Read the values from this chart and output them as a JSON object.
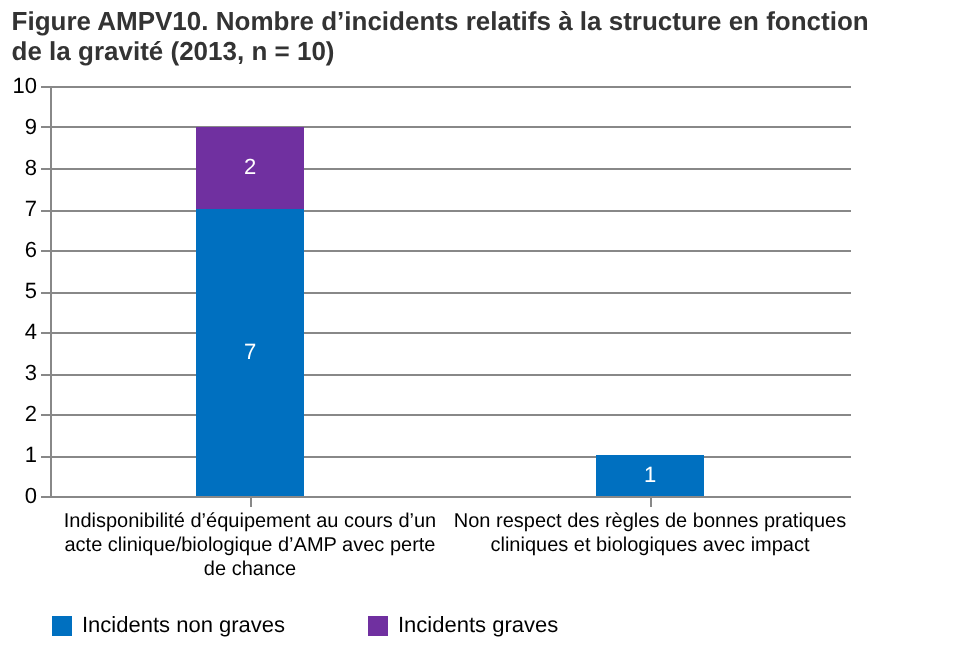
{
  "chart_data": {
    "type": "bar",
    "title": "Figure AMPV10. Nombre d’incidents relatifs à la structure en fonction de la gravité (2013, n = 10)",
    "categories": [
      "Indisponibilité d’équipement au cours d’un acte clinique/biologique d’AMP avec perte de chance",
      "Non respect des règles de bonnes pratiques cliniques et biologiques avec impact"
    ],
    "series": [
      {
        "name": "Incidents non graves",
        "color": "#0070c0",
        "values": [
          7,
          1
        ]
      },
      {
        "name": "Incidents graves",
        "color": "#7030a0",
        "values": [
          2,
          null
        ]
      }
    ],
    "stacked": true,
    "ylim": [
      0,
      10
    ],
    "yticks": [
      0,
      1,
      2,
      3,
      4,
      5,
      6,
      7,
      8,
      9,
      10
    ],
    "grid": "y",
    "legend": "bottom",
    "data_labels": true
  }
}
